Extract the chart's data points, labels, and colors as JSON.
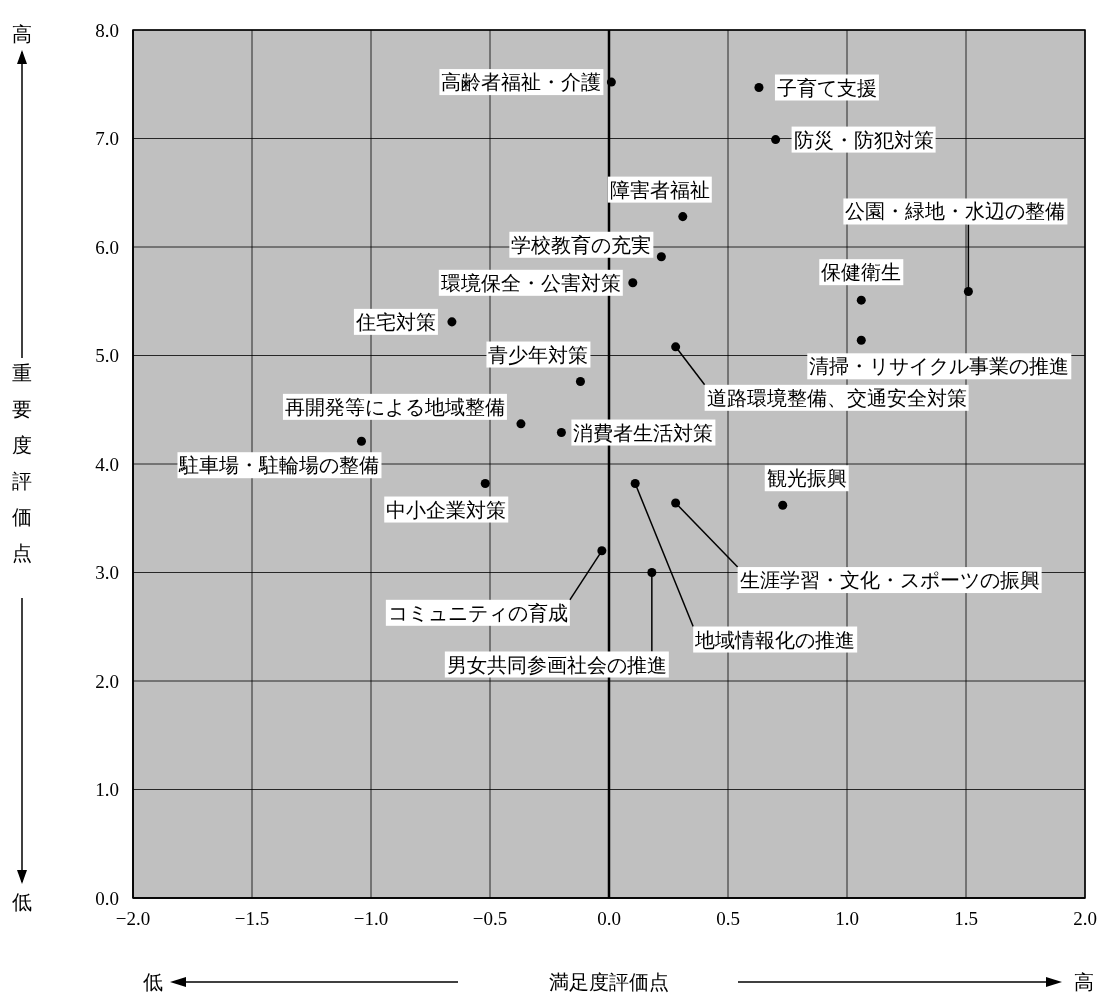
{
  "chart_data": {
    "type": "scatter",
    "xlabel": "満足度評価点",
    "ylabel": "重要度評価点",
    "x": [
      0.01,
      0.63,
      0.7,
      0.31,
      0.22,
      0.1,
      1.51,
      1.06,
      -0.66,
      1.06,
      0.28,
      -0.12,
      -0.37,
      -0.2,
      -1.04,
      -0.52,
      0.11,
      0.28,
      0.73,
      -0.03,
      0.18
    ],
    "series": [
      {
        "color": "#000000",
        "values": [
          7.52,
          7.47,
          6.99,
          6.28,
          5.91,
          5.67,
          5.59,
          5.51,
          5.31,
          5.14,
          5.08,
          4.76,
          4.37,
          4.29,
          4.21,
          3.82,
          3.82,
          3.64,
          3.62,
          3.2,
          3.0
        ]
      }
    ],
    "xlim": [
      -2,
      2
    ],
    "ylim": [
      0,
      8
    ],
    "xticks": [
      {
        "value": -2,
        "label": "−2.0"
      },
      {
        "value": -1.5,
        "label": "−1.5"
      },
      {
        "value": -1,
        "label": "−1.0"
      },
      {
        "value": -0.5,
        "label": "−0.5"
      },
      {
        "value": 0,
        "label": "0.0"
      },
      {
        "value": 0.5,
        "label": "0.5"
      },
      {
        "value": 1,
        "label": "1.0"
      },
      {
        "value": 1.5,
        "label": "1.5"
      },
      {
        "value": 2,
        "label": "2.0"
      }
    ],
    "yticks": [
      {
        "value": 0,
        "label": "0.0"
      },
      {
        "value": 1,
        "label": "1.0"
      },
      {
        "value": 2,
        "label": "2.0"
      },
      {
        "value": 3,
        "label": "3.0"
      },
      {
        "value": 4,
        "label": "4.0"
      },
      {
        "value": 5,
        "label": "5.0"
      },
      {
        "value": 6,
        "label": "6.0"
      },
      {
        "value": 7,
        "label": "7.0"
      },
      {
        "value": 8,
        "label": "8.0"
      }
    ],
    "grid": true,
    "marker": "circle",
    "ref_lines": [
      {
        "axis": "x",
        "value": 0,
        "color": "#000000"
      }
    ],
    "annotations": [
      {
        "text": "高齢者福祉・介護",
        "x": 0.01,
        "y": 7.52
      },
      {
        "text": "子育て支援",
        "x": 0.63,
        "y": 7.47
      },
      {
        "text": "防災・防犯対策",
        "x": 0.7,
        "y": 6.99
      },
      {
        "text": "障害者福祉",
        "x": 0.31,
        "y": 6.28
      },
      {
        "text": "学校教育の充実",
        "x": 0.22,
        "y": 5.91
      },
      {
        "text": "環境保全・公害対策",
        "x": 0.1,
        "y": 5.67
      },
      {
        "text": "公園・緑地・水辺の整備",
        "x": 1.51,
        "y": 5.59
      },
      {
        "text": "保健衛生",
        "x": 1.06,
        "y": 5.51
      },
      {
        "text": "住宅対策",
        "x": -0.66,
        "y": 5.31
      },
      {
        "text": "清掃・リサイクル事業の推進",
        "x": 1.06,
        "y": 5.14
      },
      {
        "text": "道路環境整備、交通安全対策",
        "x": 0.28,
        "y": 5.08
      },
      {
        "text": "青少年対策",
        "x": -0.12,
        "y": 4.76
      },
      {
        "text": "再開発等による地域整備",
        "x": -0.37,
        "y": 4.37
      },
      {
        "text": "消費者生活対策",
        "x": -0.2,
        "y": 4.29
      },
      {
        "text": "駐車場・駐輪場の整備",
        "x": -1.04,
        "y": 4.21
      },
      {
        "text": "中小企業対策",
        "x": -0.52,
        "y": 3.82
      },
      {
        "text": "地域情報化の推進",
        "x": 0.11,
        "y": 3.82
      },
      {
        "text": "生涯学習・文化・スポーツの振興",
        "x": 0.28,
        "y": 3.64
      },
      {
        "text": "観光振興",
        "x": 0.73,
        "y": 3.62
      },
      {
        "text": "コミュニティの育成",
        "x": -0.03,
        "y": 3.2
      },
      {
        "text": "男女共同参画社会の推進",
        "x": 0.18,
        "y": 3.0
      },
      "高",
      "低",
      "低",
      "高"
    ]
  }
}
